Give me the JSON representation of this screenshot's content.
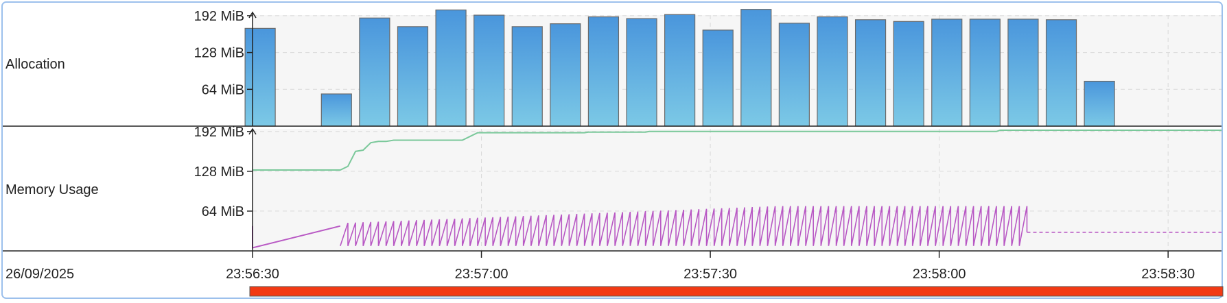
{
  "date_label": "26/09/2025",
  "chart_data": [
    {
      "type": "bar",
      "ylabel": "Allocation",
      "y_ticks": [
        "64 MiB",
        "128 MiB",
        "192 MiB"
      ],
      "y_tick_values": [
        64,
        128,
        192
      ],
      "ylim": [
        0,
        205
      ],
      "x_ticks": [
        "23:56:30",
        "23:57:00",
        "23:57:30",
        "23:58:00",
        "23:58:30"
      ],
      "x_tick_values": [
        "23:56:30",
        "23:57:00",
        "23:57:30",
        "23:58:00",
        "23:58:30"
      ],
      "xlim": [
        "23:56:30",
        "23:58:37"
      ],
      "grid": true,
      "categories": [
        "23:56:31",
        "23:56:36",
        "23:56:41",
        "23:56:46",
        "23:56:51",
        "23:56:56",
        "23:57:01",
        "23:57:06",
        "23:57:11",
        "23:57:16",
        "23:57:21",
        "23:57:26",
        "23:57:31",
        "23:57:36",
        "23:57:41",
        "23:57:46",
        "23:57:51",
        "23:57:56",
        "23:58:01",
        "23:58:06",
        "23:58:11",
        "23:58:16",
        "23:58:21",
        "23:58:26"
      ],
      "values": [
        170,
        0,
        56,
        188,
        173,
        202,
        193,
        173,
        178,
        190,
        187,
        194,
        167,
        203,
        179,
        190,
        185,
        182,
        186,
        186,
        186,
        185,
        78,
        0
      ],
      "color_top": "#4a96dc",
      "color_bottom": "#7cc9e6"
    },
    {
      "type": "line",
      "ylabel": "Memory Usage",
      "y_ticks": [
        "64 MiB",
        "128 MiB",
        "192 MiB"
      ],
      "y_tick_values": [
        64,
        128,
        192
      ],
      "ylim": [
        0,
        205
      ],
      "grid": true,
      "series": [
        {
          "color": "#7ac89a",
          "x": [
            "23:56:30",
            "23:56:41.5",
            "23:56:42.5",
            "23:56:43.5",
            "23:56:44.5",
            "23:56:45.5",
            "23:56:46.5",
            "23:56:47.5",
            "23:56:48.5",
            "23:56:49.5",
            "23:56:50.5",
            "23:56:57.5",
            "23:56:58.5",
            "23:56:59.5",
            "23:57:00.5",
            "23:57:13.5",
            "23:57:14",
            "23:57:21.5",
            "23:57:22",
            "23:58:07.5",
            "23:58:08",
            "23:58:37"
          ],
          "values": [
            130,
            130,
            136,
            160,
            162,
            174,
            176,
            176,
            178,
            178,
            178,
            178,
            184,
            190,
            190,
            190,
            191,
            191,
            192,
            192,
            194,
            194
          ]
        },
        {
          "color": "#b858c4",
          "style": "sawtooth",
          "x_start": "23:56:41.5",
          "x_end": "23:58:11.5",
          "min": 8,
          "max_start": 45,
          "max_end": 72,
          "lead_in": {
            "x": [
              "23:56:30",
              "23:56:30",
              "23:56:41.5"
            ],
            "values": [
              40,
              5,
              40
            ]
          },
          "projected": {
            "x": [
              "23:58:11.5",
              "23:58:37"
            ],
            "values": [
              30,
              30
            ]
          }
        }
      ]
    }
  ],
  "timeline_bar_color": "#f23a14"
}
